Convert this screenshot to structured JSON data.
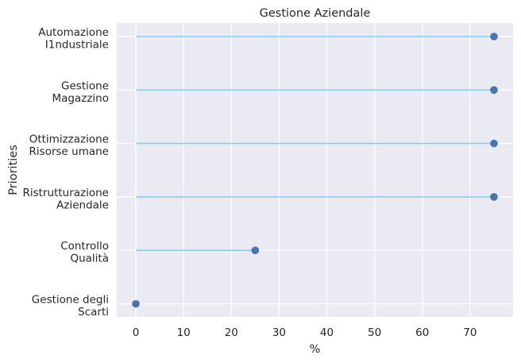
{
  "chart_data": {
    "type": "lollipop",
    "title": "Gestione Aziendale",
    "xlabel": "%",
    "ylabel": "Priorities",
    "xlim": [
      -4,
      79
    ],
    "xticks": [
      0,
      10,
      20,
      30,
      40,
      50,
      60,
      70
    ],
    "grid": true,
    "legend": "none",
    "categories": [
      {
        "label": [
          "Automazione",
          "I1ndustriale"
        ],
        "value": 75
      },
      {
        "label": [
          "Gestione",
          "Magazzino"
        ],
        "value": 75
      },
      {
        "label": [
          "Ottimizzazione",
          "Risorse umane"
        ],
        "value": 75
      },
      {
        "label": [
          "Ristrutturazione",
          "Aziendale"
        ],
        "value": 75
      },
      {
        "label": [
          "Controllo",
          "Qualità"
        ],
        "value": 25
      },
      {
        "label": [
          "Gestione degli",
          "Scarti"
        ],
        "value": 0
      }
    ],
    "colors": {
      "background": "#eaeaf2",
      "grid": "#ffffff",
      "stem": "#87ceeb",
      "marker": "#4c72b0"
    }
  }
}
